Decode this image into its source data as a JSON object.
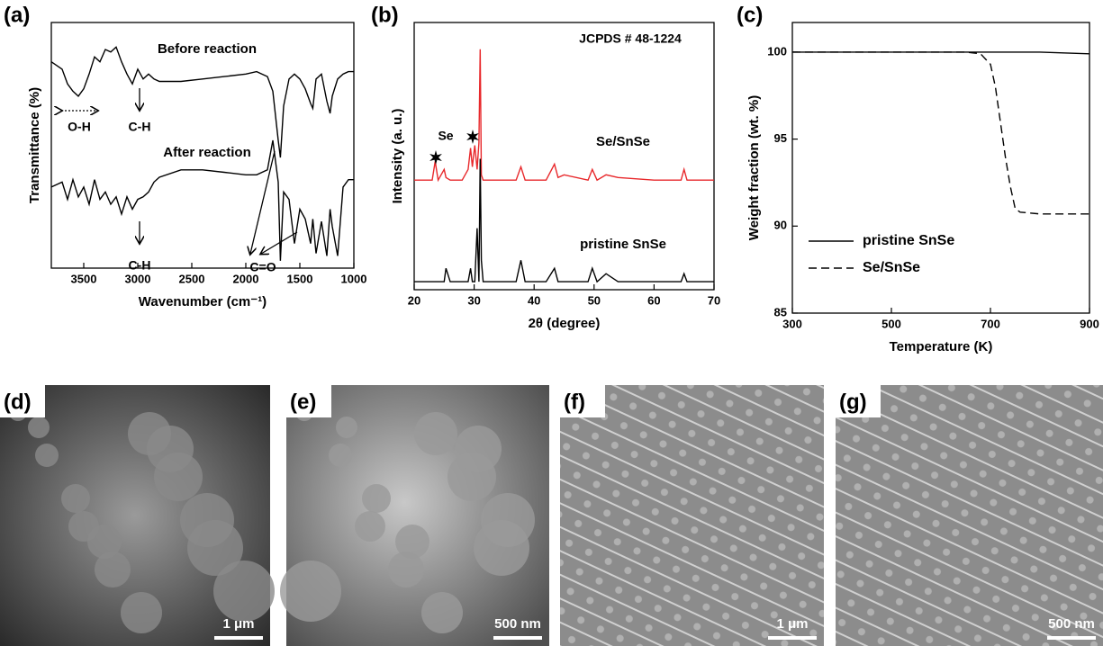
{
  "chart_data": [
    {
      "type": "line",
      "panel_label": "(a)",
      "x_label": "Wavenumber (cm⁻¹)",
      "y_label": "Transmittance (%)",
      "x": [
        3800,
        3700,
        3650,
        3600,
        3550,
        3500,
        3450,
        3400,
        3350,
        3300,
        3250,
        3200,
        3150,
        3100,
        3050,
        3000,
        2950,
        2900,
        2850,
        2800,
        2600,
        2400,
        2200,
        2000,
        1900,
        1800,
        1750,
        1700,
        1680,
        1650,
        1600,
        1550,
        1500,
        1450,
        1400,
        1380,
        1350,
        1300,
        1250,
        1220,
        1200,
        1150,
        1100,
        1050,
        1000
      ],
      "series": [
        {
          "name": "Before reaction",
          "color": "#000000",
          "values": [
            84,
            81,
            75,
            72,
            70,
            73,
            79,
            86,
            84,
            89,
            88,
            90,
            84,
            79,
            75,
            81,
            77,
            79,
            77,
            76,
            76,
            77,
            78,
            79,
            80,
            78,
            72,
            52,
            45,
            66,
            77,
            79,
            77,
            73,
            67,
            65,
            77,
            79,
            68,
            63,
            70,
            77,
            79,
            80,
            80
          ]
        },
        {
          "name": "After reaction",
          "color": "#000000",
          "values": [
            33,
            35,
            28,
            36,
            29,
            33,
            26,
            36,
            28,
            31,
            26,
            29,
            22,
            29,
            24,
            28,
            29,
            31,
            35,
            37,
            40,
            40,
            39,
            38,
            38,
            40,
            52,
            35,
            3,
            31,
            28,
            10,
            24,
            20,
            10,
            20,
            6,
            19,
            5,
            24,
            17,
            5,
            33,
            36,
            36
          ]
        }
      ],
      "annotations": [
        "O-H",
        "C-H",
        "C-H",
        "C=O"
      ],
      "xlim": [
        3800,
        1000
      ],
      "xticks": [
        3500,
        3000,
        2500,
        2000,
        1500,
        1000
      ],
      "ylim": [
        0,
        100
      ]
    },
    {
      "type": "line",
      "panel_label": "(b)",
      "x_label": "2θ (degree)",
      "y_label": "Intensity (a. u.)",
      "x": [
        20,
        22,
        23,
        23.5,
        24,
        25,
        25.3,
        26,
        28,
        29,
        29.4,
        29.7,
        30.1,
        30.5,
        30.8,
        31.0,
        31.2,
        31.5,
        33,
        37,
        37.8,
        38.5,
        42,
        43.4,
        44,
        45,
        49,
        49.7,
        50.5,
        52,
        54,
        60,
        64.5,
        65,
        65.5,
        70
      ],
      "series": [
        {
          "name": "Se/SnSe",
          "color": "#e8282b",
          "values": [
            41,
            41,
            41,
            48,
            41,
            45,
            42,
            41,
            41,
            45,
            53,
            46,
            54,
            45,
            55,
            90,
            43,
            41,
            41,
            41,
            46,
            41,
            41,
            47,
            42,
            43,
            41,
            45,
            41,
            43,
            42,
            41,
            41,
            45,
            41,
            41
          ]
        },
        {
          "name": "pristine SnSe",
          "color": "#000000",
          "values": [
            3,
            3,
            3,
            3,
            3,
            3,
            8,
            3,
            3,
            3,
            8,
            3,
            3,
            23,
            3,
            49,
            11,
            3,
            3,
            3,
            11,
            3,
            3,
            8,
            3,
            3,
            3,
            8,
            3,
            6,
            3,
            3,
            3,
            6,
            3,
            3
          ]
        }
      ],
      "annotations": [
        "JCPDS # 48-1224",
        "Se"
      ],
      "xlim": [
        20,
        70
      ],
      "xticks": [
        20,
        30,
        40,
        50,
        60,
        70
      ],
      "ylim": [
        0,
        100
      ]
    },
    {
      "type": "line",
      "panel_label": "(c)",
      "x_label": "Temperature (K)",
      "y_label": "Weight fraction (wt. %)",
      "x": [
        300,
        500,
        650,
        680,
        700,
        710,
        720,
        730,
        740,
        750,
        760,
        800,
        900
      ],
      "series": [
        {
          "name": "pristine SnSe",
          "color": "#000000",
          "dash": "solid",
          "values": [
            100,
            100,
            100,
            100,
            100,
            100,
            100,
            100,
            100,
            100,
            100,
            100,
            99.9
          ]
        },
        {
          "name": "Se/SnSe",
          "color": "#000000",
          "dash": "dashed",
          "values": [
            100,
            100,
            100,
            99.9,
            99.3,
            98,
            96,
            94,
            92.3,
            91,
            90.8,
            90.7,
            90.7
          ]
        }
      ],
      "legend": "lower left",
      "xlim": [
        300,
        900
      ],
      "xticks": [
        300,
        500,
        700,
        900
      ],
      "ylim": [
        85,
        101.7
      ],
      "yticks": [
        85,
        90,
        95,
        100
      ]
    }
  ],
  "images": [
    {
      "label": "(d)",
      "scale_bar": "1 μm"
    },
    {
      "label": "(e)",
      "scale_bar": "500 nm"
    },
    {
      "label": "(f)",
      "scale_bar": "1 μm"
    },
    {
      "label": "(g)",
      "scale_bar": "500 nm"
    }
  ]
}
